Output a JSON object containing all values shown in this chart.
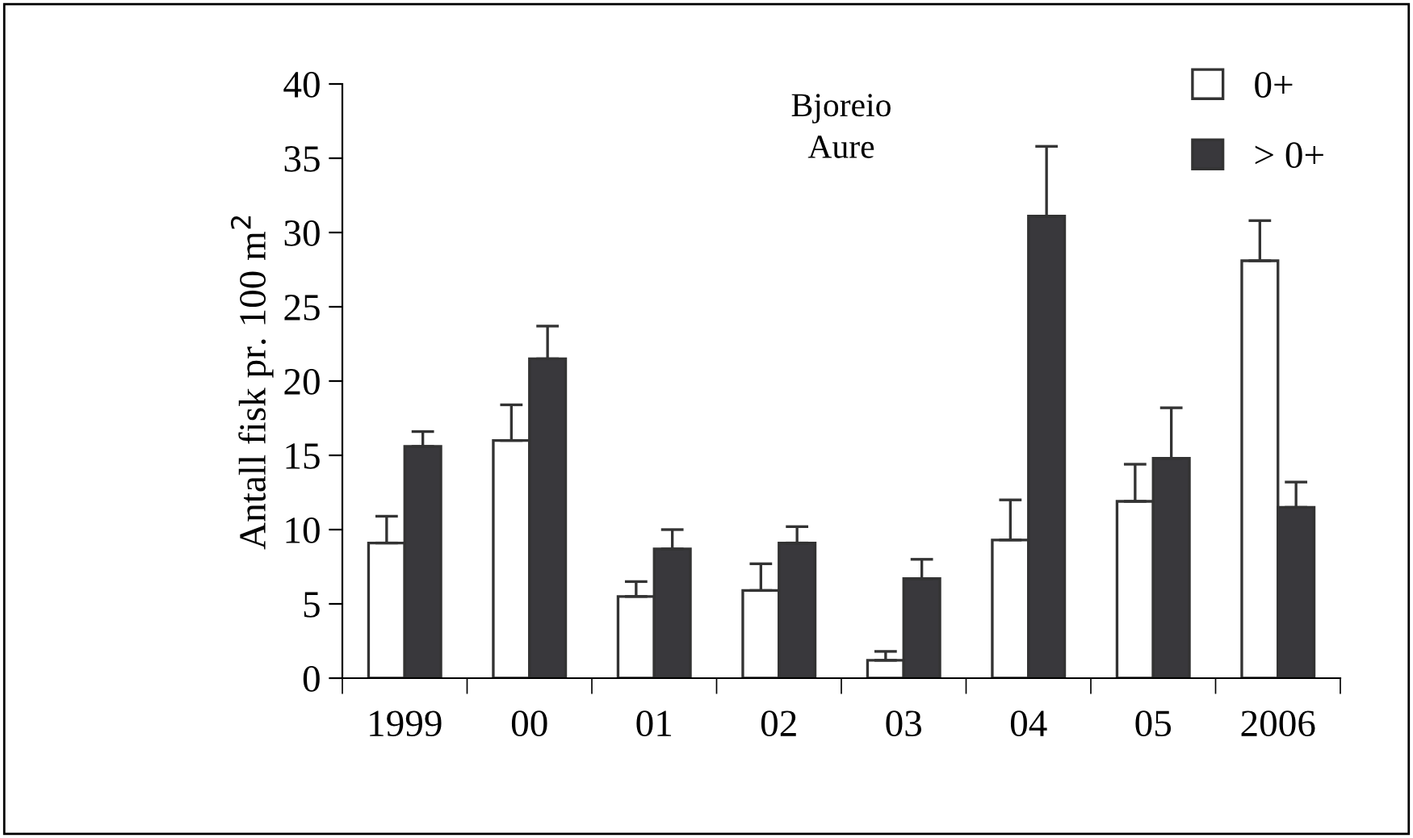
{
  "chart_data": {
    "type": "bar",
    "title": "Bjoreio",
    "subtitle": "Aure",
    "ylabel": "Antall fisk pr. 100 m$^{2}$",
    "categories": [
      "1999",
      "00",
      "01",
      "02",
      "03",
      "04",
      "05",
      "2006"
    ],
    "series": [
      {
        "name": "0+",
        "color": "#ffffff",
        "values": [
          9.1,
          16.0,
          5.5,
          5.9,
          1.2,
          9.3,
          11.9,
          28.1
        ],
        "errors": [
          [
            9.1,
            10.9
          ],
          [
            16.0,
            18.4
          ],
          [
            5.5,
            6.5
          ],
          [
            5.9,
            7.7
          ],
          [
            1.2,
            1.8
          ],
          [
            9.3,
            12.0
          ],
          [
            11.9,
            14.4
          ],
          [
            28.1,
            30.8
          ]
        ]
      },
      {
        "name": "> 0+",
        "color": "#39383c",
        "values": [
          15.6,
          21.5,
          8.7,
          9.1,
          6.7,
          31.1,
          14.8,
          11.5
        ],
        "errors": [
          [
            15.6,
            16.6
          ],
          [
            21.5,
            23.7
          ],
          [
            8.7,
            10.0
          ],
          [
            9.1,
            10.2
          ],
          [
            6.7,
            8.0
          ],
          [
            31.1,
            35.8
          ],
          [
            14.8,
            18.2
          ],
          [
            11.5,
            13.2
          ]
        ]
      }
    ],
    "ylim": [
      0,
      40
    ],
    "yticks": [
      0,
      5,
      10,
      15,
      20,
      25,
      30,
      35,
      40
    ],
    "grid": false,
    "legend": "top right"
  }
}
